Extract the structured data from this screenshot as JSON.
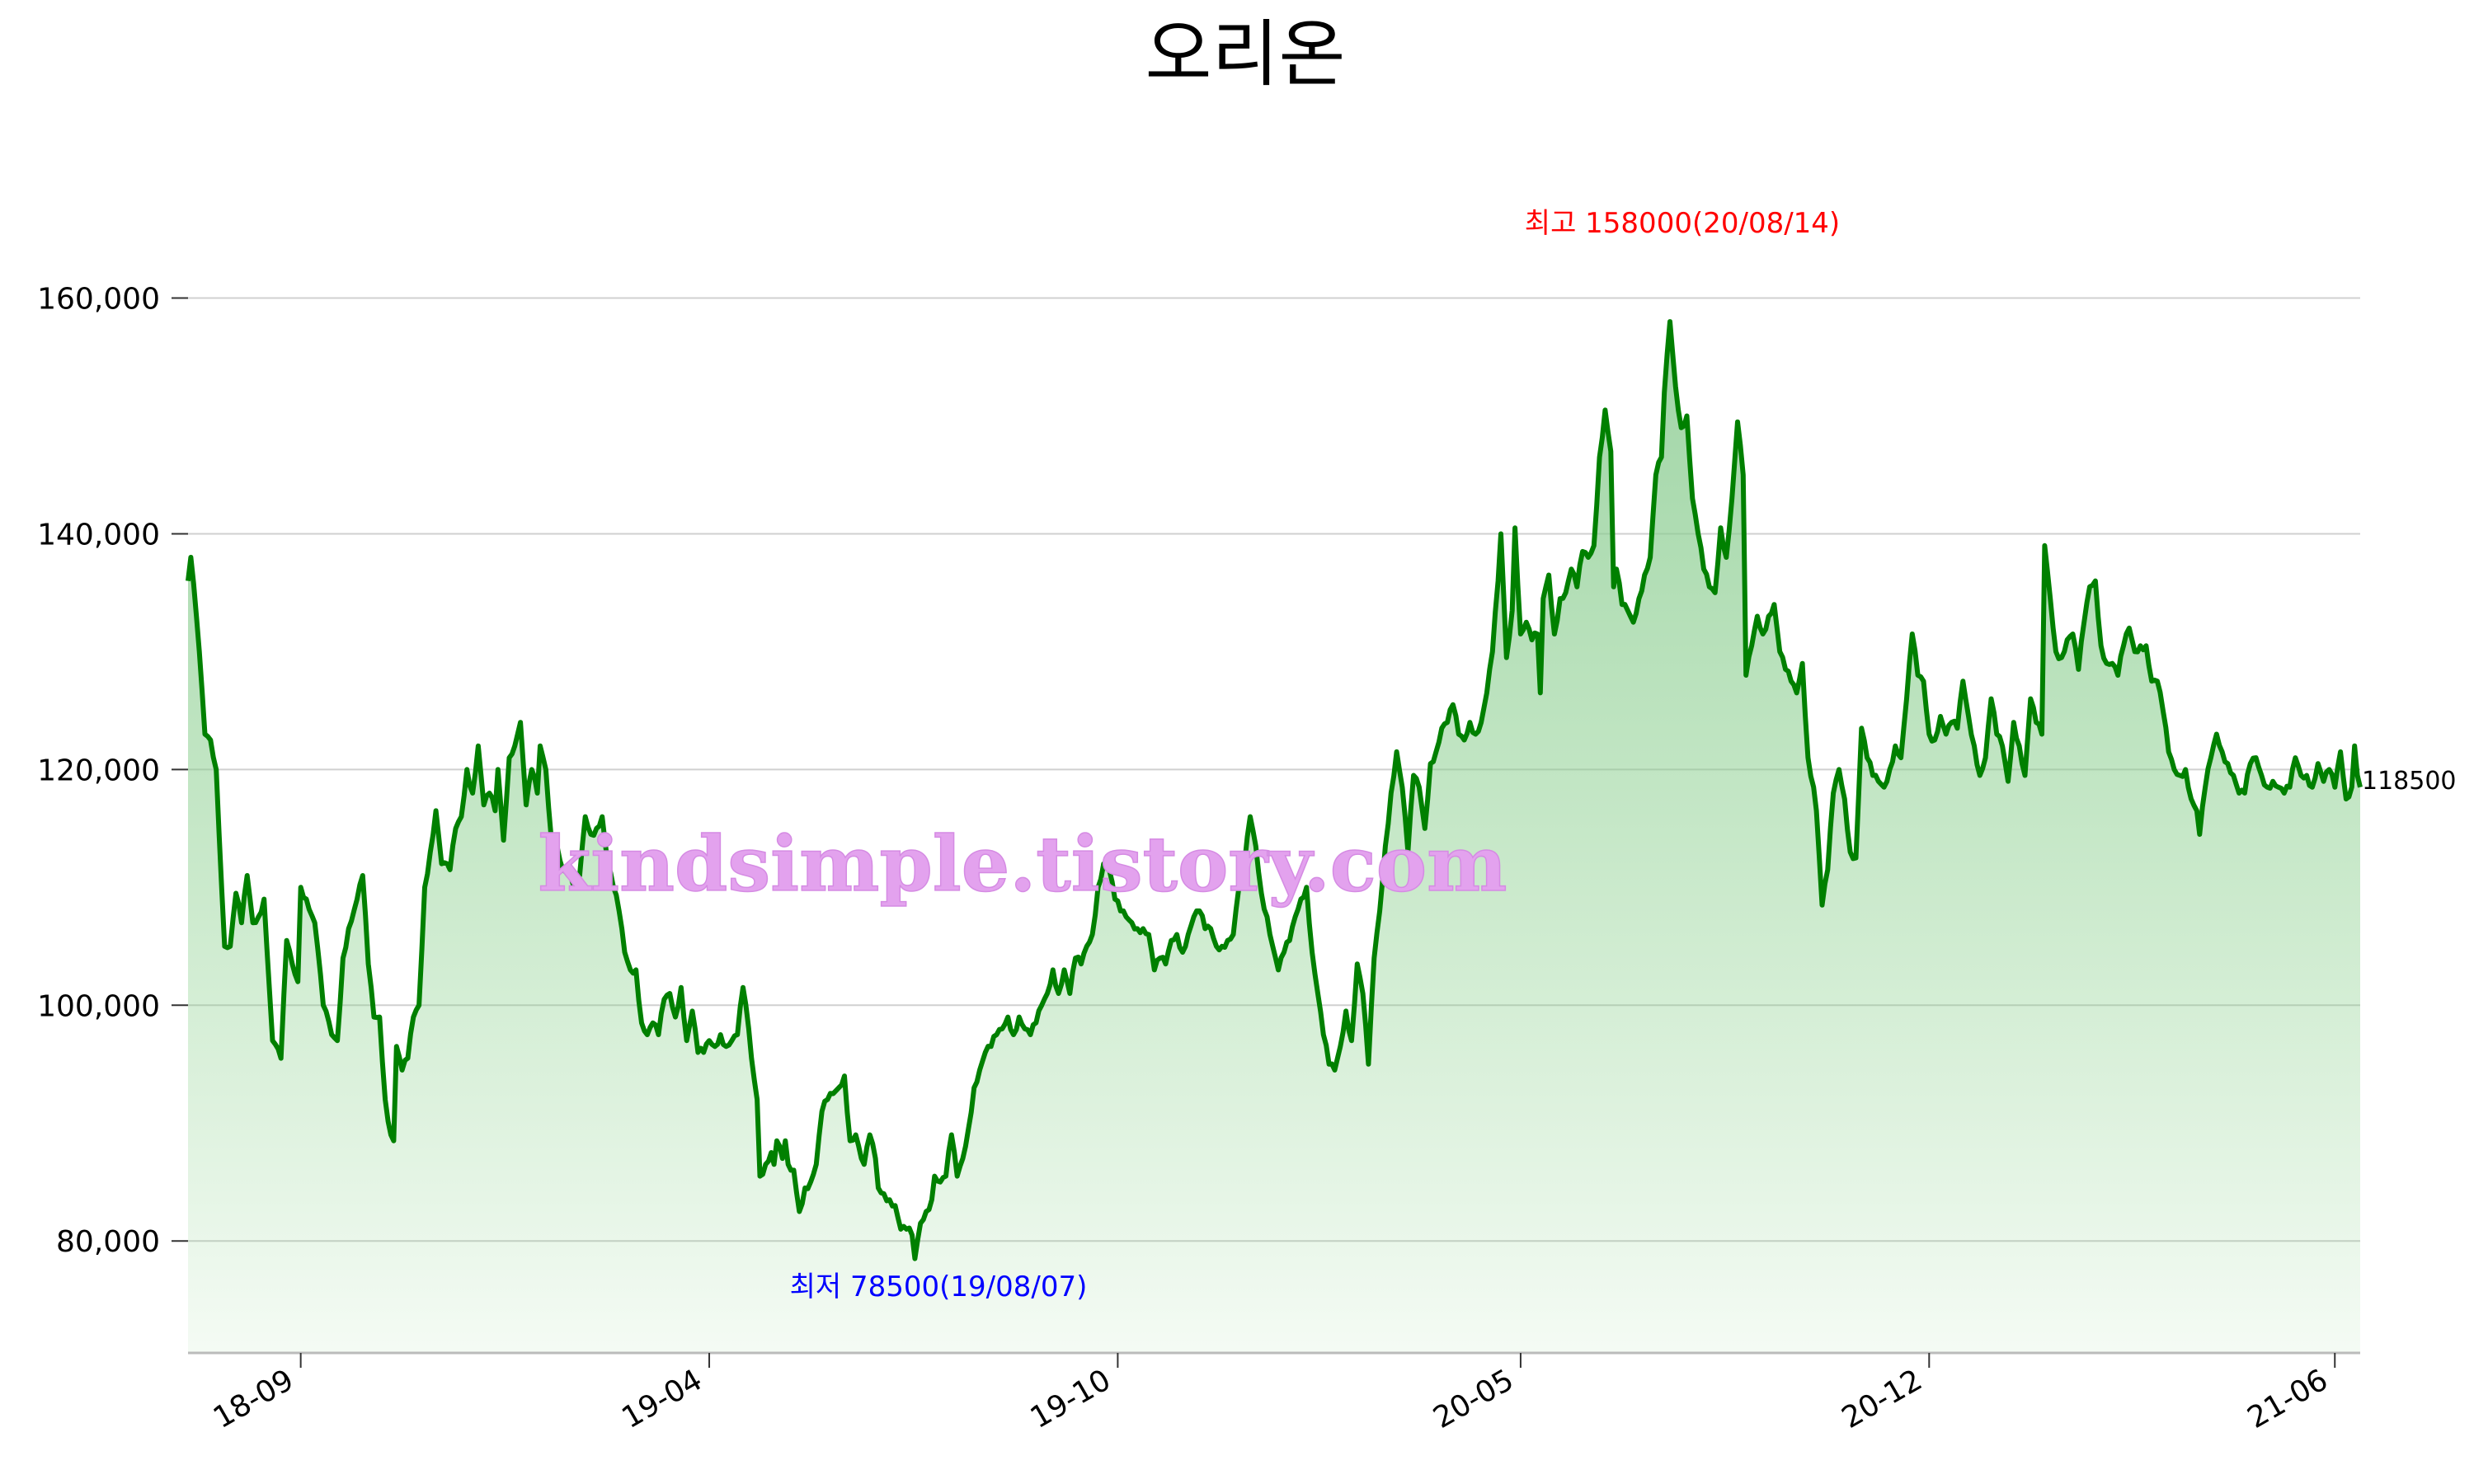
{
  "chart_data": {
    "type": "area",
    "title": "오리온",
    "xlabel": "",
    "ylabel": "",
    "ylim": [
      70500,
      172000
    ],
    "yticks": [
      80000,
      100000,
      120000,
      140000,
      160000
    ],
    "ytick_labels": [
      "80,000",
      "100,000",
      "120,000",
      "140,000",
      "160,000"
    ],
    "xticks": [
      {
        "label": "18-09",
        "value": 40
      },
      {
        "label": "19-04",
        "value": 185
      },
      {
        "label": "19-10",
        "value": 330
      },
      {
        "label": "20-05",
        "value": 473
      },
      {
        "label": "20-12",
        "value": 618
      },
      {
        "label": "21-06",
        "value": 762
      }
    ],
    "x_range": [
      0,
      771
    ],
    "grid": true,
    "line_color": "#008000",
    "fill_color": "#7ccd7c",
    "annotations": {
      "max_label": "최고 158000(20/08/14)",
      "max_index": 526,
      "max_value": 158000,
      "min_label": "최저 78500(19/08/07)",
      "min_index": 258,
      "min_value": 78500,
      "last_label": "118500",
      "last_value": 118500
    },
    "watermark": "kindsimple.tistory.com",
    "anchors": [
      [
        0,
        136000
      ],
      [
        1,
        138000
      ],
      [
        3,
        133000
      ],
      [
        6,
        123000
      ],
      [
        8,
        122500
      ],
      [
        10,
        120000
      ],
      [
        13,
        105000
      ],
      [
        15,
        105000
      ],
      [
        17,
        109500
      ],
      [
        19,
        107000
      ],
      [
        21,
        111000
      ],
      [
        23,
        107000
      ],
      [
        25,
        107500
      ],
      [
        27,
        109000
      ],
      [
        30,
        97000
      ],
      [
        33,
        95500
      ],
      [
        35,
        105500
      ],
      [
        37,
        103500
      ],
      [
        39,
        102000
      ],
      [
        40,
        110000
      ],
      [
        42,
        109000
      ],
      [
        45,
        107000
      ],
      [
        48,
        100000
      ],
      [
        51,
        97500
      ],
      [
        53,
        97000
      ],
      [
        55,
        104000
      ],
      [
        57,
        106500
      ],
      [
        60,
        109000
      ],
      [
        62,
        111000
      ],
      [
        64,
        103500
      ],
      [
        66,
        99000
      ],
      [
        68,
        99000
      ],
      [
        70,
        92000
      ],
      [
        72,
        89000
      ],
      [
        73,
        88500
      ],
      [
        74,
        96500
      ],
      [
        76,
        94500
      ],
      [
        78,
        95500
      ],
      [
        80,
        99000
      ],
      [
        82,
        100000
      ],
      [
        84,
        110000
      ],
      [
        86,
        113000
      ],
      [
        88,
        116500
      ],
      [
        90,
        112000
      ],
      [
        93,
        111500
      ],
      [
        95,
        115000
      ],
      [
        97,
        116000
      ],
      [
        99,
        120000
      ],
      [
        101,
        118000
      ],
      [
        103,
        122000
      ],
      [
        105,
        117000
      ],
      [
        107,
        118000
      ],
      [
        109,
        116500
      ],
      [
        110,
        120000
      ],
      [
        112,
        114000
      ],
      [
        114,
        121000
      ],
      [
        117,
        123000
      ],
      [
        118,
        124000
      ],
      [
        120,
        117000
      ],
      [
        122,
        120000
      ],
      [
        124,
        118000
      ],
      [
        125,
        122000
      ],
      [
        127,
        120000
      ],
      [
        129,
        114000
      ],
      [
        131,
        113500
      ],
      [
        133,
        111500
      ],
      [
        135,
        111000
      ],
      [
        137,
        110000
      ],
      [
        139,
        111000
      ],
      [
        141,
        116000
      ],
      [
        143,
        114500
      ],
      [
        145,
        115000
      ],
      [
        147,
        116000
      ],
      [
        149,
        112000
      ],
      [
        151,
        110000
      ],
      [
        153,
        108000
      ],
      [
        155,
        104500
      ],
      [
        157,
        103000
      ],
      [
        159,
        103000
      ],
      [
        161,
        98500
      ],
      [
        163,
        97500
      ],
      [
        165,
        98500
      ],
      [
        167,
        97500
      ],
      [
        169,
        100500
      ],
      [
        171,
        101000
      ],
      [
        173,
        99000
      ],
      [
        175,
        101500
      ],
      [
        177,
        97000
      ],
      [
        179,
        99500
      ],
      [
        181,
        96000
      ],
      [
        183,
        96000
      ],
      [
        185,
        97000
      ],
      [
        187,
        96500
      ],
      [
        189,
        97500
      ],
      [
        191,
        96500
      ],
      [
        193,
        97000
      ],
      [
        195,
        97500
      ],
      [
        197,
        101500
      ],
      [
        199,
        98000
      ],
      [
        200,
        95500
      ],
      [
        202,
        92000
      ],
      [
        203,
        85500
      ],
      [
        205,
        86500
      ],
      [
        207,
        87500
      ],
      [
        208,
        86500
      ],
      [
        209,
        88500
      ],
      [
        211,
        87000
      ],
      [
        212,
        88500
      ],
      [
        213,
        86500
      ],
      [
        214,
        86000
      ],
      [
        215,
        86000
      ],
      [
        217,
        82500
      ],
      [
        219,
        84500
      ],
      [
        221,
        85000
      ],
      [
        223,
        86500
      ],
      [
        225,
        91000
      ],
      [
        227,
        92000
      ],
      [
        229,
        92500
      ],
      [
        231,
        93000
      ],
      [
        233,
        94000
      ],
      [
        235,
        88500
      ],
      [
        237,
        89000
      ],
      [
        239,
        87000
      ],
      [
        240,
        86500
      ],
      [
        241,
        88000
      ],
      [
        242,
        89000
      ],
      [
        244,
        87000
      ],
      [
        245,
        84500
      ],
      [
        247,
        84000
      ],
      [
        249,
        83500
      ],
      [
        251,
        83000
      ],
      [
        253,
        81000
      ],
      [
        255,
        81000
      ],
      [
        257,
        80500
      ],
      [
        258,
        78500
      ],
      [
        260,
        81500
      ],
      [
        262,
        82500
      ],
      [
        264,
        83500
      ],
      [
        265,
        85500
      ],
      [
        267,
        85000
      ],
      [
        269,
        85500
      ],
      [
        271,
        89000
      ],
      [
        273,
        85500
      ],
      [
        275,
        87000
      ],
      [
        277,
        89500
      ],
      [
        279,
        93000
      ],
      [
        281,
        94500
      ],
      [
        283,
        96000
      ],
      [
        285,
        96500
      ],
      [
        287,
        97500
      ],
      [
        289,
        98000
      ],
      [
        291,
        99000
      ],
      [
        293,
        97500
      ],
      [
        295,
        99000
      ],
      [
        297,
        98000
      ],
      [
        299,
        97500
      ],
      [
        301,
        98500
      ],
      [
        303,
        100000
      ],
      [
        305,
        101000
      ],
      [
        307,
        103000
      ],
      [
        309,
        101000
      ],
      [
        311,
        103000
      ],
      [
        313,
        101000
      ],
      [
        315,
        104000
      ],
      [
        317,
        103500
      ],
      [
        319,
        105000
      ],
      [
        321,
        106000
      ],
      [
        323,
        110000
      ],
      [
        325,
        112000
      ],
      [
        327,
        111500
      ],
      [
        329,
        109000
      ],
      [
        331,
        108000
      ],
      [
        333,
        107500
      ],
      [
        335,
        107000
      ],
      [
        337,
        106500
      ],
      [
        339,
        106500
      ],
      [
        341,
        106000
      ],
      [
        343,
        103000
      ],
      [
        345,
        104000
      ],
      [
        347,
        103500
      ],
      [
        349,
        105500
      ],
      [
        351,
        106000
      ],
      [
        353,
        104500
      ],
      [
        355,
        106000
      ],
      [
        357,
        107500
      ],
      [
        359,
        108000
      ],
      [
        361,
        106500
      ],
      [
        363,
        106500
      ],
      [
        365,
        105000
      ],
      [
        367,
        105000
      ],
      [
        369,
        105500
      ],
      [
        371,
        106000
      ],
      [
        373,
        110000
      ],
      [
        375,
        112000
      ],
      [
        377,
        116000
      ],
      [
        379,
        113500
      ],
      [
        381,
        109500
      ],
      [
        383,
        107500
      ],
      [
        385,
        105000
      ],
      [
        387,
        103000
      ],
      [
        389,
        104500
      ],
      [
        391,
        105500
      ],
      [
        393,
        107500
      ],
      [
        395,
        109000
      ],
      [
        397,
        110000
      ],
      [
        399,
        104500
      ],
      [
        401,
        101000
      ],
      [
        403,
        97500
      ],
      [
        405,
        95000
      ],
      [
        407,
        94500
      ],
      [
        409,
        96500
      ],
      [
        411,
        99500
      ],
      [
        413,
        97000
      ],
      [
        415,
        103500
      ],
      [
        417,
        101000
      ],
      [
        419,
        95000
      ],
      [
        421,
        104000
      ],
      [
        423,
        108000
      ],
      [
        425,
        113500
      ],
      [
        427,
        118000
      ],
      [
        429,
        121500
      ],
      [
        431,
        118500
      ],
      [
        433,
        113000
      ],
      [
        435,
        119500
      ],
      [
        437,
        118500
      ],
      [
        439,
        115000
      ],
      [
        441,
        120500
      ],
      [
        443,
        121500
      ],
      [
        445,
        123500
      ],
      [
        447,
        124000
      ],
      [
        449,
        125500
      ],
      [
        451,
        123000
      ],
      [
        453,
        122500
      ],
      [
        455,
        124000
      ],
      [
        457,
        123000
      ],
      [
        459,
        124000
      ],
      [
        461,
        126500
      ],
      [
        463,
        130000
      ],
      [
        465,
        136000
      ],
      [
        466,
        140000
      ],
      [
        468,
        129500
      ],
      [
        470,
        133500
      ],
      [
        471,
        140500
      ],
      [
        473,
        131500
      ],
      [
        475,
        132500
      ],
      [
        477,
        131000
      ],
      [
        479,
        131500
      ],
      [
        480,
        126500
      ],
      [
        481,
        134500
      ],
      [
        483,
        136500
      ],
      [
        485,
        131500
      ],
      [
        487,
        134500
      ],
      [
        489,
        135000
      ],
      [
        491,
        137000
      ],
      [
        493,
        135500
      ],
      [
        495,
        138500
      ],
      [
        497,
        138000
      ],
      [
        499,
        139000
      ],
      [
        501,
        146500
      ],
      [
        503,
        150500
      ],
      [
        505,
        147000
      ],
      [
        506,
        135500
      ],
      [
        507,
        137000
      ],
      [
        509,
        134000
      ],
      [
        511,
        133500
      ],
      [
        513,
        132500
      ],
      [
        515,
        134500
      ],
      [
        517,
        136500
      ],
      [
        519,
        138000
      ],
      [
        521,
        145000
      ],
      [
        523,
        146500
      ],
      [
        524,
        152000
      ],
      [
        526,
        158000
      ],
      [
        528,
        152500
      ],
      [
        530,
        149000
      ],
      [
        532,
        150000
      ],
      [
        534,
        143000
      ],
      [
        536,
        140000
      ],
      [
        538,
        137000
      ],
      [
        540,
        135500
      ],
      [
        542,
        135000
      ],
      [
        544,
        140500
      ],
      [
        546,
        138000
      ],
      [
        548,
        143000
      ],
      [
        550,
        149500
      ],
      [
        552,
        145000
      ],
      [
        553,
        128000
      ],
      [
        555,
        130500
      ],
      [
        557,
        133000
      ],
      [
        559,
        131500
      ],
      [
        561,
        133000
      ],
      [
        563,
        134000
      ],
      [
        565,
        130000
      ],
      [
        567,
        128500
      ],
      [
        569,
        127500
      ],
      [
        571,
        126500
      ],
      [
        573,
        129000
      ],
      [
        575,
        121000
      ],
      [
        577,
        118500
      ],
      [
        578,
        116500
      ],
      [
        580,
        108500
      ],
      [
        582,
        111500
      ],
      [
        584,
        118000
      ],
      [
        586,
        120000
      ],
      [
        588,
        117500
      ],
      [
        590,
        113000
      ],
      [
        592,
        112500
      ],
      [
        594,
        123500
      ],
      [
        596,
        121000
      ],
      [
        598,
        119500
      ],
      [
        600,
        119000
      ],
      [
        602,
        118500
      ],
      [
        604,
        120000
      ],
      [
        606,
        122000
      ],
      [
        608,
        121000
      ],
      [
        610,
        126000
      ],
      [
        612,
        131500
      ],
      [
        614,
        128000
      ],
      [
        616,
        127500
      ],
      [
        618,
        123000
      ],
      [
        620,
        122500
      ],
      [
        622,
        124500
      ],
      [
        624,
        123000
      ],
      [
        626,
        124000
      ],
      [
        628,
        123500
      ],
      [
        630,
        127500
      ],
      [
        632,
        124500
      ],
      [
        634,
        122000
      ],
      [
        636,
        119500
      ],
      [
        638,
        121000
      ],
      [
        640,
        126000
      ],
      [
        642,
        123000
      ],
      [
        644,
        122000
      ],
      [
        646,
        119000
      ],
      [
        648,
        124000
      ],
      [
        650,
        122000
      ],
      [
        652,
        119500
      ],
      [
        654,
        126000
      ],
      [
        656,
        124000
      ],
      [
        658,
        123000
      ],
      [
        659,
        139000
      ],
      [
        661,
        134500
      ],
      [
        663,
        130000
      ],
      [
        665,
        129500
      ],
      [
        667,
        131000
      ],
      [
        669,
        131500
      ],
      [
        671,
        128500
      ],
      [
        673,
        132500
      ],
      [
        675,
        135500
      ],
      [
        677,
        136000
      ],
      [
        679,
        130500
      ],
      [
        681,
        129000
      ],
      [
        683,
        129000
      ],
      [
        685,
        128000
      ],
      [
        687,
        130500
      ],
      [
        689,
        132000
      ],
      [
        691,
        130000
      ],
      [
        693,
        130500
      ],
      [
        695,
        130500
      ],
      [
        697,
        127500
      ],
      [
        699,
        127500
      ],
      [
        701,
        125000
      ],
      [
        703,
        121500
      ],
      [
        705,
        120000
      ],
      [
        707,
        119500
      ],
      [
        709,
        120000
      ],
      [
        711,
        117500
      ],
      [
        713,
        116500
      ],
      [
        714,
        114500
      ],
      [
        716,
        118500
      ],
      [
        718,
        121000
      ],
      [
        720,
        123000
      ],
      [
        722,
        121500
      ],
      [
        724,
        120500
      ],
      [
        726,
        119500
      ],
      [
        728,
        118000
      ],
      [
        730,
        118000
      ],
      [
        732,
        120500
      ],
      [
        734,
        121000
      ],
      [
        736,
        119500
      ],
      [
        738,
        118500
      ],
      [
        740,
        119000
      ],
      [
        742,
        118500
      ],
      [
        744,
        118000
      ],
      [
        746,
        118500
      ],
      [
        748,
        121000
      ],
      [
        750,
        119500
      ],
      [
        752,
        119500
      ],
      [
        754,
        118500
      ],
      [
        756,
        120500
      ],
      [
        758,
        119000
      ],
      [
        760,
        120000
      ],
      [
        762,
        118500
      ],
      [
        764,
        121500
      ],
      [
        766,
        117500
      ],
      [
        768,
        118500
      ],
      [
        769,
        122000
      ],
      [
        770,
        119500
      ],
      [
        771,
        118500
      ]
    ]
  }
}
